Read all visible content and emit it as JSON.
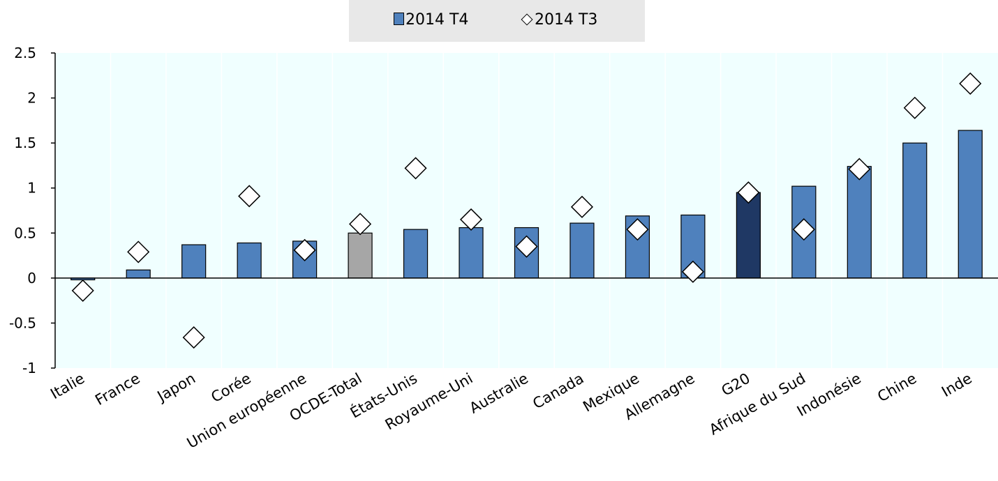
{
  "chart_data": {
    "type": "bar",
    "title": "",
    "xlabel": "",
    "ylabel": "",
    "ylim": [
      -1,
      2.5
    ],
    "yticks": [
      -1,
      -0.5,
      0,
      0.5,
      1,
      1.5,
      2,
      2.5
    ],
    "ytick_labels": [
      "-1",
      "-0.5",
      "0",
      "0.5",
      "1",
      "1.5",
      "2",
      "2.5"
    ],
    "legend_position": "top-center",
    "grid": false,
    "categories": [
      "Italie",
      "France",
      "Japon",
      "Corée",
      "Union européenne",
      "OCDE-Total",
      "États-Unis",
      "Royaume-Uni",
      "Australie",
      "Canada",
      "Mexique",
      "Allemagne",
      "G20",
      "Afrique du Sud",
      "Indonésie",
      "Chine",
      "Inde"
    ],
    "series": [
      {
        "name": "2014 T4",
        "kind": "bar",
        "values": [
          -0.02,
          0.09,
          0.37,
          0.39,
          0.41,
          0.5,
          0.54,
          0.56,
          0.56,
          0.61,
          0.69,
          0.7,
          0.95,
          1.02,
          1.24,
          1.5,
          1.64
        ],
        "color": "#4f81bd",
        "highlight_colors": {
          "OCDE-Total": "#a6a6a6",
          "G20": "#1f3864"
        }
      },
      {
        "name": "2014 T3",
        "kind": "marker",
        "marker": "diamond",
        "values": [
          -0.14,
          0.29,
          -0.66,
          0.91,
          0.31,
          0.6,
          1.22,
          0.65,
          0.35,
          0.79,
          0.54,
          0.07,
          0.95,
          0.54,
          1.21,
          1.89,
          2.16
        ],
        "color": "#ffffff"
      }
    ],
    "plot_background": "#f0ffff"
  }
}
